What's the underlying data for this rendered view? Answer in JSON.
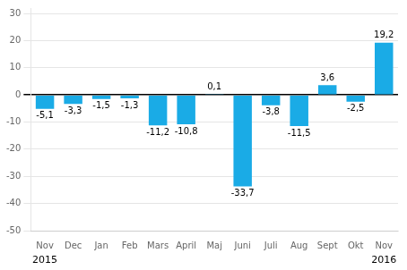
{
  "chart_data": {
    "type": "bar",
    "categories": [
      "Nov",
      "Dec",
      "Jan",
      "Feb",
      "Mars",
      "April",
      "Maj",
      "Juni",
      "Juli",
      "Aug",
      "Sept",
      "Okt",
      "Nov"
    ],
    "values": [
      -5.1,
      -3.3,
      -1.5,
      -1.3,
      -11.2,
      -10.8,
      0.1,
      -33.7,
      -3.8,
      -11.5,
      3.6,
      -2.5,
      19.2
    ],
    "value_labels": [
      "-5,1",
      "-3,3",
      "-1,5",
      "-1,3",
      "-11,2",
      "-10,8",
      "0,1",
      "-33,7",
      "-3,8",
      "-11,5",
      "3,6",
      "-2,5",
      "19,2"
    ],
    "data_labels": true,
    "color": "#1aabe6",
    "ylim": [
      -50,
      32
    ],
    "yticks": [
      -50,
      -40,
      -30,
      -20,
      -10,
      0,
      10,
      20,
      30
    ],
    "grid": true,
    "annotations": [
      {
        "text": "2015",
        "x": 0
      },
      {
        "text": "2016",
        "x": 12
      }
    ]
  }
}
